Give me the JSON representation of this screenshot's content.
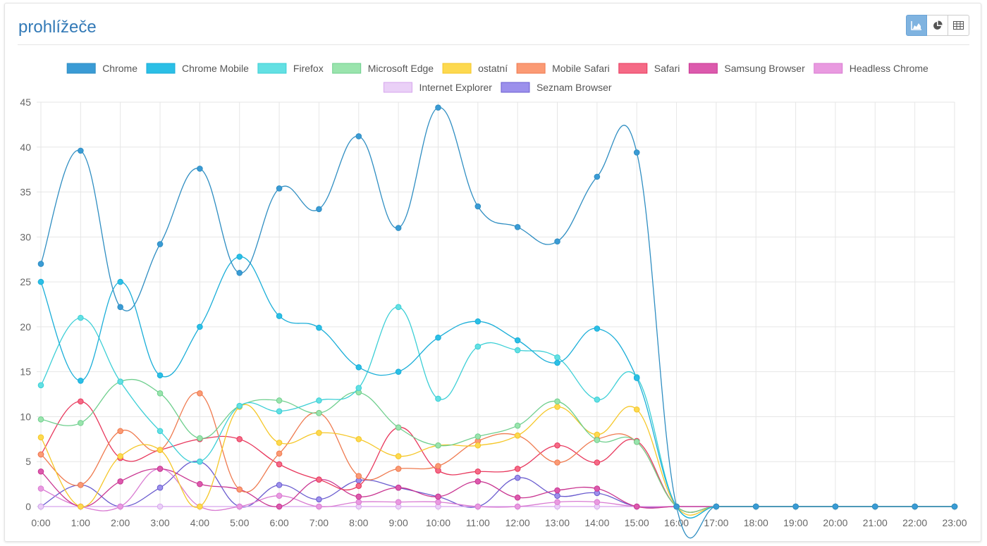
{
  "header": {
    "title": "prohlížeče"
  },
  "toolbar": {
    "buttons": [
      {
        "name": "area-chart-icon",
        "active": true
      },
      {
        "name": "pie-chart-icon",
        "active": false
      },
      {
        "name": "table-icon",
        "active": false
      }
    ]
  },
  "chart_data": {
    "type": "line",
    "title": "prohlížeče",
    "legend_position": "top",
    "grid": true,
    "ylim": [
      0,
      45
    ],
    "yticks": [
      0,
      5,
      10,
      15,
      20,
      25,
      30,
      35,
      40,
      45
    ],
    "categories": [
      "0:00",
      "1:00",
      "2:00",
      "3:00",
      "4:00",
      "5:00",
      "6:00",
      "7:00",
      "8:00",
      "9:00",
      "10:00",
      "11:00",
      "12:00",
      "13:00",
      "14:00",
      "15:00",
      "16:00",
      "17:00",
      "18:00",
      "19:00",
      "20:00",
      "21:00",
      "22:00",
      "23:00"
    ],
    "series": [
      {
        "name": "Chrome",
        "color": "#2f8ec2",
        "fill": "#3a9bd5",
        "values": [
          27,
          39.6,
          22.2,
          29.2,
          37.6,
          26,
          35.4,
          33.1,
          41.2,
          31,
          44.4,
          33.4,
          31.1,
          29.5,
          36.7,
          39.4,
          0,
          0,
          0,
          0,
          0,
          0,
          0,
          0
        ]
      },
      {
        "name": "Chrome Mobile",
        "color": "#1aaed8",
        "fill": "#2bbfe6",
        "values": [
          25,
          14,
          25,
          14.6,
          20,
          27.8,
          21.2,
          19.9,
          15.5,
          15,
          18.8,
          20.6,
          18.5,
          16,
          19.8,
          14.3,
          0,
          0,
          0,
          0,
          0,
          0,
          0,
          0
        ]
      },
      {
        "name": "Firefox",
        "color": "#3ccfd6",
        "fill": "#63e0e3",
        "values": [
          13.5,
          21,
          13.9,
          8.4,
          5,
          11.2,
          10.6,
          11.8,
          13.2,
          22.2,
          12,
          17.8,
          17.4,
          16.6,
          11.9,
          14.4,
          0,
          0,
          0,
          0,
          0,
          0,
          0,
          0
        ]
      },
      {
        "name": "Microsoft Edge",
        "color": "#6fcf8e",
        "fill": "#9ae4ad",
        "values": [
          9.7,
          9.3,
          13.9,
          12.6,
          7.6,
          11.2,
          11.8,
          10.4,
          12.7,
          8.8,
          6.8,
          7.8,
          9,
          11.7,
          7.4,
          7.2,
          0,
          0,
          0,
          0,
          0,
          0,
          0,
          0
        ]
      },
      {
        "name": "ostatní",
        "color": "#f5c728",
        "fill": "#fdd94f",
        "values": [
          7.7,
          0,
          5.6,
          6.3,
          0,
          11.1,
          7.1,
          8.2,
          7.5,
          5.6,
          6.8,
          6.8,
          7.9,
          11.1,
          8,
          10.8,
          0,
          0,
          0,
          0,
          0,
          0,
          0,
          0
        ]
      },
      {
        "name": "Mobile Safari",
        "color": "#ef7a4f",
        "fill": "#fb9a74",
        "values": [
          5.8,
          2.4,
          8.4,
          6.3,
          12.6,
          1.9,
          5.9,
          10.4,
          3.4,
          4.2,
          4.5,
          7.3,
          7.9,
          4.9,
          7.5,
          7.2,
          0,
          0,
          0,
          0,
          0,
          0,
          0,
          0
        ]
      },
      {
        "name": "Safari",
        "color": "#e8385d",
        "fill": "#f56a86",
        "values": [
          5.8,
          11.7,
          5.4,
          6.3,
          7.5,
          7.5,
          4.7,
          3,
          2.3,
          8.8,
          4,
          3.9,
          4.2,
          6.8,
          4.9,
          7.3,
          0,
          0,
          0,
          0,
          0,
          0,
          0,
          0
        ]
      },
      {
        "name": "Samsung Browser",
        "color": "#c93591",
        "fill": "#dc5aad",
        "values": [
          3.9,
          0,
          2.8,
          4.2,
          2.5,
          1.9,
          0,
          3,
          1.1,
          2.1,
          1.1,
          2.8,
          1,
          1.8,
          2,
          0,
          0,
          0,
          0,
          0,
          0,
          0,
          0,
          0
        ]
      },
      {
        "name": "Headless Chrome",
        "color": "#d97bd2",
        "fill": "#e99ae0",
        "values": [
          2,
          0,
          0,
          4.2,
          0,
          0,
          1.2,
          0,
          0.5,
          0.5,
          0.5,
          0,
          0,
          0.5,
          0.5,
          0,
          0,
          0,
          0,
          0,
          0,
          0,
          0,
          0
        ]
      },
      {
        "name": "Internet Explorer",
        "color": "#d6a5ee",
        "fill": "#ead0f7",
        "values": [
          0,
          0,
          0,
          0,
          0,
          0,
          0,
          0,
          0,
          0,
          0,
          0,
          0,
          0,
          0,
          0,
          0,
          0,
          0,
          0,
          0,
          0,
          0,
          0
        ]
      },
      {
        "name": "Seznam Browser",
        "color": "#6a5ccf",
        "fill": "#9c90ec",
        "values": [
          0,
          2.4,
          0,
          2.1,
          5,
          0,
          2.4,
          0.8,
          2.9,
          2.1,
          1.1,
          0,
          3.2,
          1.2,
          1.5,
          0,
          0,
          0,
          0,
          0,
          0,
          0,
          0,
          0
        ]
      }
    ]
  }
}
